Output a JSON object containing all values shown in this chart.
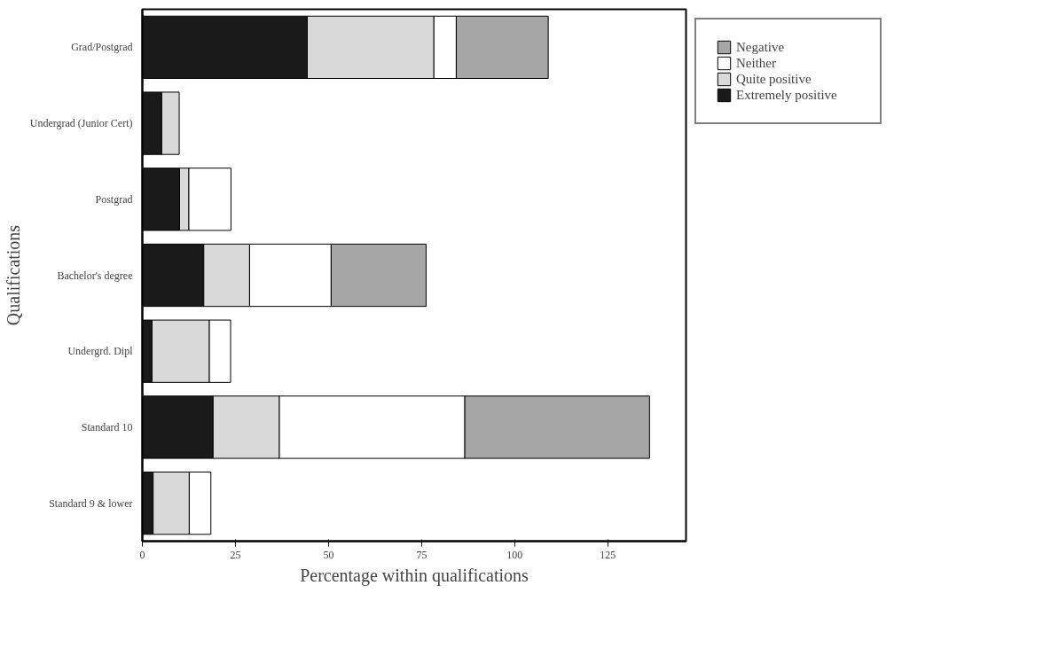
{
  "chart_data": {
    "type": "bar",
    "orientation": "horizontal",
    "stacked": true,
    "categories": [
      "Grad/Postgrad",
      "Undergrad (Junior Cert)",
      "Postgrad",
      "Bachelor's degree",
      "Undergrd. Dipl",
      "Standard 10",
      "Standard 9 & lower"
    ],
    "series": [
      {
        "name": "Extremely positive",
        "color": "#1a1a1a",
        "values": [
          44.3,
          5.2,
          10,
          16.5,
          2.6,
          19,
          2.9
        ]
      },
      {
        "name": "Quite positive",
        "color": "#d9d9d9",
        "values": [
          34,
          4.7,
          2.5,
          12.3,
          15.4,
          17.8,
          9.7
        ]
      },
      {
        "name": "Neither",
        "color": "#ffffff",
        "values": [
          6,
          null,
          11.3,
          21.9,
          5.7,
          49.8,
          5.8
        ]
      },
      {
        "name": "Negative",
        "color": "#a6a6a6",
        "values": [
          24.7,
          null,
          null,
          25.5,
          null,
          49.6,
          null
        ]
      }
    ],
    "xlabel": "Percentage within qualifications",
    "ylabel": "Qualifications",
    "xlim": [
      0,
      146
    ],
    "xticks": [
      0,
      25,
      50,
      75,
      100,
      125
    ],
    "grid": false,
    "legend": "top right"
  }
}
